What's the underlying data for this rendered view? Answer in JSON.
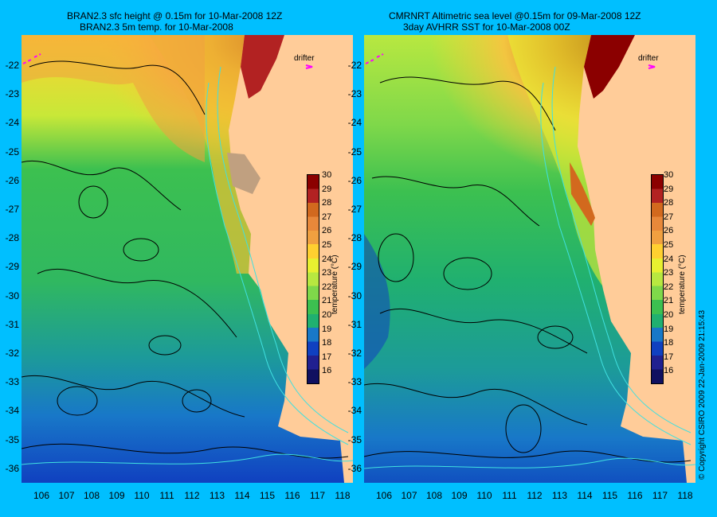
{
  "left": {
    "title_line1": "BRAN2.3 sfc height @ 0.15m for 10-Mar-2008 12Z",
    "title_line2": "BRAN2.3 5m temp. for 10-Mar-2008",
    "drifter_label": "drifter"
  },
  "right": {
    "title_line1": "CMRNRT Altimetric sea level  @0.15m  for 09-Mar-2008 12Z",
    "title_line2": "3day AVHRR SST for 10-Mar-2008 00Z",
    "drifter_label": "drifter"
  },
  "lat_labels": [
    "-22",
    "-23",
    "-24",
    "-25",
    "-26",
    "-27",
    "-28",
    "-29",
    "-30",
    "-31",
    "-32",
    "-33",
    "-34",
    "-35",
    "-36"
  ],
  "lon_labels": [
    "106",
    "107",
    "108",
    "109",
    "110",
    "111",
    "112",
    "113",
    "114",
    "115",
    "116",
    "117",
    "118"
  ],
  "colorbar": {
    "ticks": [
      "30",
      "29",
      "28",
      "27",
      "26",
      "25",
      "24",
      "23",
      "22",
      "21",
      "20",
      "19",
      "18",
      "17",
      "16"
    ],
    "label": "temperature (°C)",
    "colors": [
      "#8B0000",
      "#B22222",
      "#D2691E",
      "#E8883A",
      "#F0A040",
      "#FFD030",
      "#E8F030",
      "#B8E840",
      "#7FD84A",
      "#3CC050",
      "#20B070",
      "#1878C8",
      "#1040C0",
      "#202090",
      "#101060"
    ]
  },
  "copyright": "© Copyright CSIRO 2009   22-Jan-2009 21:15:43"
}
